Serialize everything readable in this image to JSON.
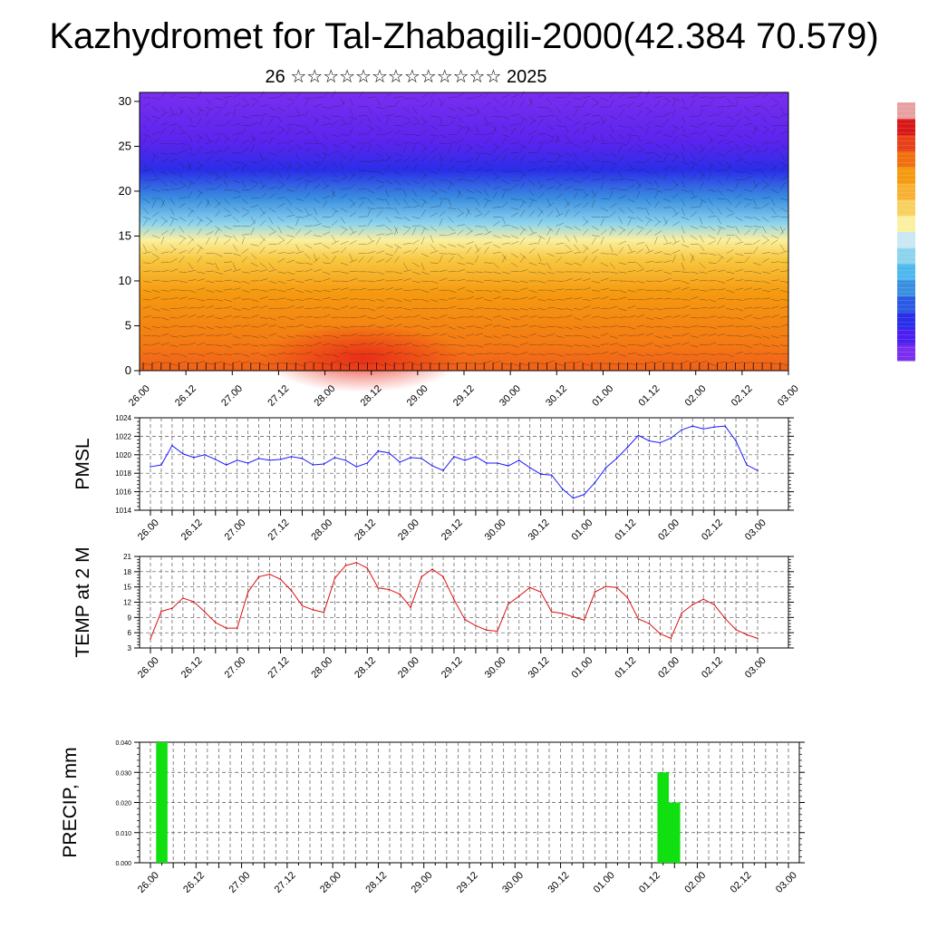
{
  "title": "Kazhydromet for Tal-Zhabagili-2000(42.384 70.579)",
  "subtitle": "26 ☆☆☆☆☆☆☆☆☆☆☆☆☆ 2025",
  "time_labels": [
    "26.00",
    "26.12",
    "27.00",
    "27.12",
    "28.00",
    "28.12",
    "29.00",
    "29.12",
    "30.00",
    "30.12",
    "01.00",
    "01.12",
    "02.00",
    "02.12",
    "03.00"
  ],
  "chart_data": [
    {
      "type": "heatmap",
      "title": "",
      "x_categories": [
        "26.00",
        "26.12",
        "27.00",
        "27.12",
        "28.00",
        "28.12",
        "29.00",
        "29.12",
        "30.00",
        "30.12",
        "01.00",
        "01.12",
        "02.00",
        "02.12",
        "03.00"
      ],
      "y_ticks": [
        0,
        5,
        10,
        15,
        20,
        25,
        30
      ],
      "ylim": [
        0,
        31
      ],
      "description_bands": [
        {
          "from": 0,
          "to": 4,
          "color": "#f0601a"
        },
        {
          "from": 4,
          "to": 10,
          "color": "#f59a10"
        },
        {
          "from": 10,
          "to": 14,
          "color": "#f8c840"
        },
        {
          "from": 14,
          "to": 16,
          "color": "#fbf0a0"
        },
        {
          "from": 16,
          "to": 19,
          "color": "#8cd3ee"
        },
        {
          "from": 19,
          "to": 22,
          "color": "#3a8ee0"
        },
        {
          "from": 22,
          "to": 25,
          "color": "#2a2ee8"
        },
        {
          "from": 25,
          "to": 31,
          "color": "#7a2ef0"
        }
      ]
    },
    {
      "type": "line",
      "ylabel": "PMSL",
      "ylim": [
        1014,
        1024
      ],
      "y_ticks": [
        1014,
        1016,
        1018,
        1020,
        1022,
        1024
      ],
      "color": "#1a1aff",
      "x_labels": [
        "26.00",
        "26.12",
        "27.00",
        "27.12",
        "28.00",
        "28.12",
        "29.00",
        "29.12",
        "30.00",
        "30.12",
        "01.00",
        "01.12",
        "02.00",
        "02.12",
        "03.00"
      ],
      "values": [
        1018.7,
        1018.9,
        1021.0,
        1020.1,
        1019.7,
        1020.0,
        1019.5,
        1018.9,
        1019.4,
        1019.1,
        1019.6,
        1019.4,
        1019.5,
        1019.8,
        1019.6,
        1018.9,
        1019.0,
        1019.7,
        1019.4,
        1018.7,
        1019.1,
        1020.4,
        1020.2,
        1019.2,
        1019.7,
        1019.6,
        1018.8,
        1018.3,
        1019.8,
        1019.4,
        1019.8,
        1019.1,
        1019.1,
        1018.8,
        1019.4,
        1018.6,
        1017.9,
        1017.8,
        1016.3,
        1015.3,
        1015.7,
        1017.0,
        1018.6,
        1019.6,
        1020.8,
        1022.1,
        1021.5,
        1021.3,
        1021.8,
        1022.7,
        1023.1,
        1022.8,
        1023.0,
        1023.1,
        1021.5,
        1018.9,
        1018.3
      ]
    },
    {
      "type": "line",
      "ylabel": "TEMP at 2 M",
      "ylim": [
        3,
        21
      ],
      "y_ticks": [
        3,
        6,
        9,
        12,
        15,
        18,
        21
      ],
      "color": "#e01010",
      "x_labels": [
        "26.00",
        "26.12",
        "27.00",
        "27.12",
        "28.00",
        "28.12",
        "29.00",
        "29.12",
        "30.00",
        "30.12",
        "01.00",
        "01.12",
        "02.00",
        "02.12",
        "03.00"
      ],
      "values": [
        4.8,
        10.2,
        10.8,
        12.8,
        12.1,
        10.1,
        8.0,
        6.9,
        6.9,
        14.0,
        17.0,
        17.5,
        16.5,
        14.3,
        11.3,
        10.5,
        10.0,
        16.7,
        19.2,
        19.8,
        18.7,
        14.8,
        14.5,
        13.6,
        11.0,
        17.0,
        18.5,
        17.0,
        12.5,
        8.6,
        7.4,
        6.5,
        6.3,
        11.6,
        13.2,
        14.9,
        14.0,
        10.1,
        9.8,
        9.1,
        8.5,
        14.0,
        15.1,
        14.9,
        12.9,
        8.7,
        7.8,
        5.8,
        4.9,
        9.9,
        11.5,
        12.6,
        11.5,
        8.8,
        6.6,
        5.6,
        4.9
      ]
    },
    {
      "type": "bar",
      "ylabel": "PRECIP, mm",
      "ylim": [
        0,
        0.04
      ],
      "y_ticks": [
        "0.000",
        "0.010",
        "0.020",
        "0.030",
        "0.040"
      ],
      "color": "#10e010",
      "x_labels": [
        "26.00",
        "26.12",
        "27.00",
        "27.12",
        "28.00",
        "28.12",
        "29.00",
        "29.12",
        "30.00",
        "30.12",
        "01.00",
        "01.12",
        "02.00",
        "02.12",
        "03.00"
      ],
      "bars": [
        {
          "x_step": 1,
          "value": 0.04
        },
        {
          "x_step": 45,
          "value": 0.03
        },
        {
          "x_step": 46,
          "value": 0.02
        }
      ]
    }
  ],
  "colorbar": {
    "colors": [
      "#7a2ef0",
      "#4a1ff0",
      "#2a2ee8",
      "#2a5ae4",
      "#3a8ee0",
      "#4cb8ee",
      "#8cd3ee",
      "#c8e8f4",
      "#fbf0a0",
      "#f8d060",
      "#f8b030",
      "#f59a10",
      "#f07010",
      "#e84018",
      "#d81818",
      "#e8a0a0"
    ]
  }
}
